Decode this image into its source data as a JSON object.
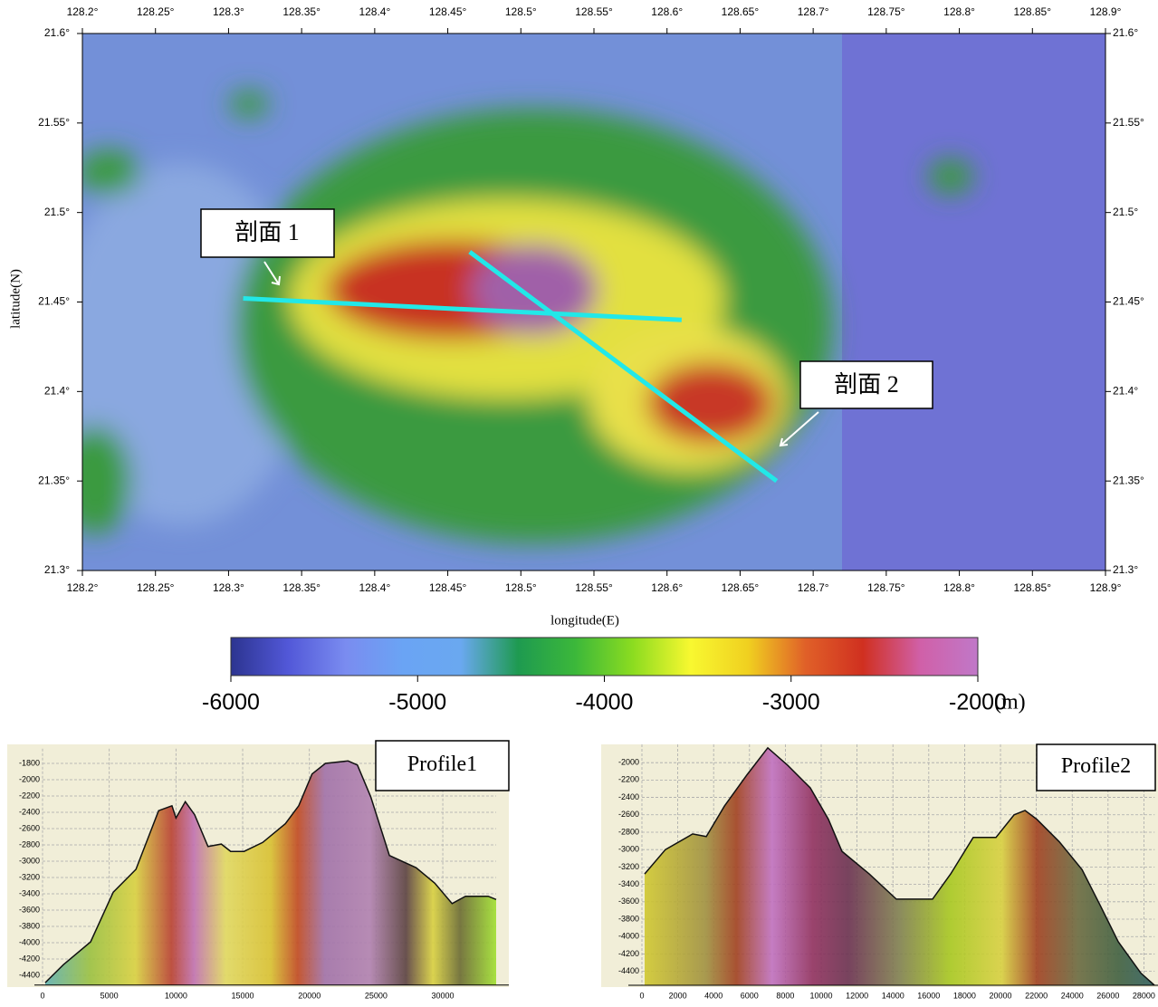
{
  "chart_data": [
    {
      "type": "map",
      "xlabel": "longitude(E)",
      "ylabel": "latitude(N)",
      "xlim": [
        128.2,
        128.9
      ],
      "ylim": [
        21.3,
        21.6
      ],
      "xticks": [
        {
          "value": 128.2,
          "label": "128.2°"
        },
        {
          "value": 128.25,
          "label": "128.25°"
        },
        {
          "value": 128.3,
          "label": "128.3°"
        },
        {
          "value": 128.35,
          "label": "128.35°"
        },
        {
          "value": 128.4,
          "label": "128.4°"
        },
        {
          "value": 128.45,
          "label": "128.45°"
        },
        {
          "value": 128.5,
          "label": "128.5°"
        },
        {
          "value": 128.55,
          "label": "128.55°"
        },
        {
          "value": 128.6,
          "label": "128.6°"
        },
        {
          "value": 128.65,
          "label": "128.65°"
        },
        {
          "value": 128.7,
          "label": "128.7°"
        },
        {
          "value": 128.75,
          "label": "128.75°"
        },
        {
          "value": 128.8,
          "label": "128.8°"
        },
        {
          "value": 128.85,
          "label": "128.85°"
        },
        {
          "value": 128.9,
          "label": "128.9°"
        }
      ],
      "yticks": [
        {
          "value": 21.3,
          "label": "21.3°"
        },
        {
          "value": 21.35,
          "label": "21.35°"
        },
        {
          "value": 21.4,
          "label": "21.4°"
        },
        {
          "value": 21.45,
          "label": "21.45°"
        },
        {
          "value": 21.5,
          "label": "21.5°"
        },
        {
          "value": 21.55,
          "label": "21.55°"
        },
        {
          "value": 21.6,
          "label": "21.6°"
        }
      ],
      "lines": [
        {
          "color": "#22e8e8",
          "x": [
            128.31,
            128.61
          ],
          "y": [
            21.452,
            21.44
          ]
        },
        {
          "color": "#22e8e8",
          "x": [
            128.465,
            128.675
          ],
          "y": [
            21.478,
            21.35
          ]
        }
      ],
      "annotations": [
        "剖面 1",
        "剖面 2"
      ]
    },
    {
      "type": "colorbar",
      "xlim": [
        -6000,
        -2000
      ],
      "xticks": [
        -6000,
        -5000,
        -4000,
        -3000,
        -2000
      ],
      "unit": "(m)",
      "colors": [
        "#2c3490",
        "#5258d8",
        "#7a8cf0",
        "#6aa4f4",
        "#6aa8f0",
        "#1e9a50",
        "#3cb83a",
        "#8cdc20",
        "#f8f830",
        "#f0d020",
        "#e06028",
        "#d03020",
        "#d060a8",
        "#c078c8"
      ]
    },
    {
      "type": "area",
      "title": "Profile1",
      "xlim": [
        0,
        34000
      ],
      "ylim": [
        -4520,
        -1620
      ],
      "xticks": [
        0,
        5000,
        10000,
        15000,
        20000,
        25000,
        30000
      ],
      "yticks": [
        -1800,
        -2000,
        -2200,
        -2400,
        -2600,
        -2800,
        -3000,
        -3200,
        -3400,
        -3600,
        -3800,
        -4000,
        -4200,
        -4400
      ],
      "x": [
        200,
        1560,
        3600,
        5300,
        7000,
        8700,
        9700,
        10000,
        10700,
        11400,
        12400,
        13400,
        14100,
        15100,
        16500,
        18200,
        19200,
        20200,
        21200,
        22900,
        23600,
        24600,
        26000,
        28000,
        29400,
        30700,
        31700,
        33400,
        34000
      ],
      "values": [
        -4490,
        -4270,
        -3990,
        -3380,
        -3100,
        -2380,
        -2320,
        -2470,
        -2270,
        -2430,
        -2820,
        -2790,
        -2880,
        -2880,
        -2770,
        -2540,
        -2320,
        -1930,
        -1800,
        -1770,
        -1820,
        -2210,
        -2930,
        -3080,
        -3270,
        -3520,
        -3430,
        -3430,
        -3470
      ]
    },
    {
      "type": "area",
      "title": "Profile2",
      "xlim": [
        0,
        28600
      ],
      "ylim": [
        -4560,
        -1790
      ],
      "xticks": [
        0,
        2000,
        4000,
        6000,
        8000,
        10000,
        12000,
        14000,
        16000,
        18000,
        20000,
        22000,
        24000,
        26000,
        28000
      ],
      "yticks": [
        -2000,
        -2200,
        -2400,
        -2600,
        -2800,
        -3000,
        -3200,
        -3400,
        -3600,
        -3800,
        -4000,
        -4200,
        -4400
      ],
      "x": [
        150,
        1310,
        2830,
        3590,
        4600,
        5860,
        7020,
        8130,
        9390,
        10400,
        11160,
        12680,
        14190,
        16210,
        17220,
        18480,
        19750,
        20760,
        21370,
        22020,
        23280,
        24550,
        25560,
        26570,
        27830,
        28590
      ],
      "values": [
        -3280,
        -3000,
        -2820,
        -2850,
        -2500,
        -2140,
        -1830,
        -2030,
        -2290,
        -2650,
        -3020,
        -3280,
        -3570,
        -3570,
        -3280,
        -2860,
        -2860,
        -2600,
        -2550,
        -2650,
        -2910,
        -3230,
        -3640,
        -4060,
        -4420,
        -4560
      ]
    }
  ]
}
